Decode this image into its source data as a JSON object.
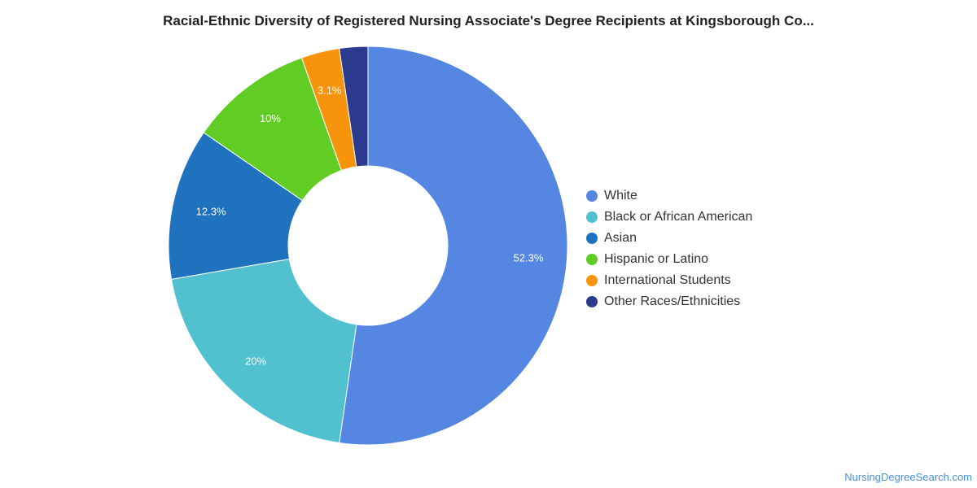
{
  "chart_data": {
    "type": "pie",
    "variant": "donut",
    "title": "Racial-Ethnic Diversity of Registered Nursing Associate's Degree Recipients at Kingsborough Co...",
    "categories": [
      "White",
      "Black or African American",
      "Asian",
      "Hispanic or Latino",
      "International Students",
      "Other Races/Ethnicities"
    ],
    "values": [
      52.3,
      20,
      12.3,
      10,
      3.1,
      2.3
    ],
    "data_labels": [
      "52.3%",
      "20%",
      "12.3%",
      "10%",
      "3.1%",
      ""
    ],
    "colors": [
      "#5486e2",
      "#51c1cf",
      "#1f72bd",
      "#61cc24",
      "#f7940c",
      "#2c3a8e"
    ],
    "legend_position": "right"
  },
  "watermark": "NursingDegreeSearch.com"
}
